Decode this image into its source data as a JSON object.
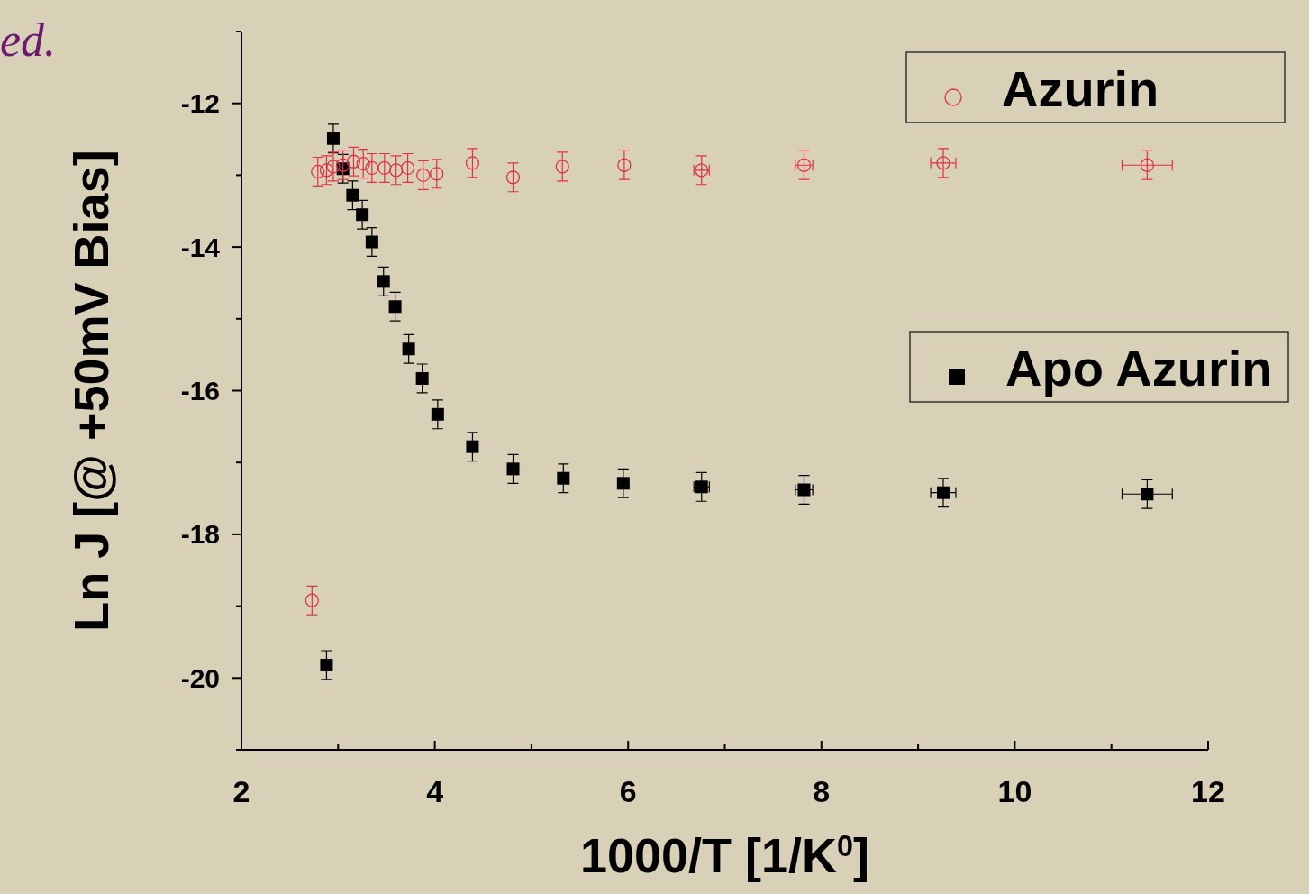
{
  "chart_data": {
    "type": "scatter",
    "xlabel": "1000/T [1/K$^{0}$]",
    "ylabel": "Ln J [@ +50mV Bias]",
    "annotations": [
      "ed."
    ],
    "xlim": [
      2,
      12
    ],
    "ylim": [
      -21,
      -11
    ],
    "xticks": [
      2,
      {
        "value": 3,
        "label": null
      },
      4,
      {
        "value": 5,
        "label": null
      },
      6,
      {
        "value": 7,
        "label": null
      },
      8,
      {
        "value": 9,
        "label": null
      },
      10,
      {
        "value": 11,
        "label": null
      },
      12
    ],
    "yticks": [
      {
        "value": -21,
        "label": null
      },
      -20,
      {
        "value": -19,
        "label": null
      },
      -18,
      {
        "value": -17,
        "label": null
      },
      -16,
      {
        "value": -15,
        "label": null
      },
      -14,
      {
        "value": -13,
        "label": null
      },
      -12,
      {
        "value": -11,
        "label": null
      }
    ],
    "legend": "top right",
    "grid": false,
    "series": [
      {
        "name": "Azurin",
        "color": "#e0304a",
        "marker": "circle",
        "x": [
          2.73,
          2.79,
          2.88,
          2.95,
          3.05,
          3.16,
          3.26,
          3.35,
          3.48,
          3.6,
          3.72,
          3.88,
          4.02,
          4.39,
          4.81,
          5.32,
          5.96,
          6.76,
          7.82,
          9.26,
          11.37
        ],
        "values": [
          -18.92,
          -12.95,
          -12.93,
          -12.88,
          -12.86,
          -12.81,
          -12.84,
          -12.9,
          -12.9,
          -12.93,
          -12.9,
          -13.0,
          -12.98,
          -12.83,
          -13.03,
          -12.88,
          -12.86,
          -12.93,
          -12.86,
          -12.83,
          -12.86
        ],
        "errors": [
          0.2,
          0.2,
          0.2,
          0.2,
          0.2,
          0.2,
          0.2,
          0.2,
          0.2,
          0.2,
          0.2,
          0.2,
          0.2,
          0.2,
          0.2,
          0.2,
          0.2,
          0.2,
          0.2,
          0.2,
          0.2
        ],
        "xerrors": [
          null,
          null,
          null,
          null,
          null,
          null,
          null,
          null,
          null,
          null,
          null,
          null,
          null,
          null,
          null,
          null,
          null,
          0.08,
          0.09,
          0.13,
          0.26
        ]
      },
      {
        "name": "Apo Azurin",
        "color": "#000000",
        "marker": "square",
        "x": [
          2.88,
          2.95,
          3.05,
          3.15,
          3.25,
          3.35,
          3.47,
          3.59,
          3.73,
          3.87,
          4.03,
          4.39,
          4.81,
          5.33,
          5.95,
          6.76,
          7.82,
          9.26,
          11.37
        ],
        "values": [
          -19.82,
          -12.49,
          -12.91,
          -13.28,
          -13.55,
          -13.93,
          -14.48,
          -14.83,
          -15.42,
          -15.83,
          -16.33,
          -16.78,
          -17.09,
          -17.22,
          -17.29,
          -17.34,
          -17.38,
          -17.42,
          -17.44
        ],
        "errors": [
          0.2,
          0.2,
          0.2,
          0.2,
          0.2,
          0.2,
          0.2,
          0.2,
          0.2,
          0.2,
          0.2,
          0.2,
          0.2,
          0.2,
          0.2,
          0.2,
          0.2,
          0.2,
          0.2
        ],
        "xerrors": [
          null,
          null,
          null,
          null,
          null,
          null,
          null,
          null,
          null,
          null,
          null,
          null,
          null,
          null,
          null,
          0.08,
          0.09,
          0.13,
          0.26
        ]
      }
    ]
  }
}
